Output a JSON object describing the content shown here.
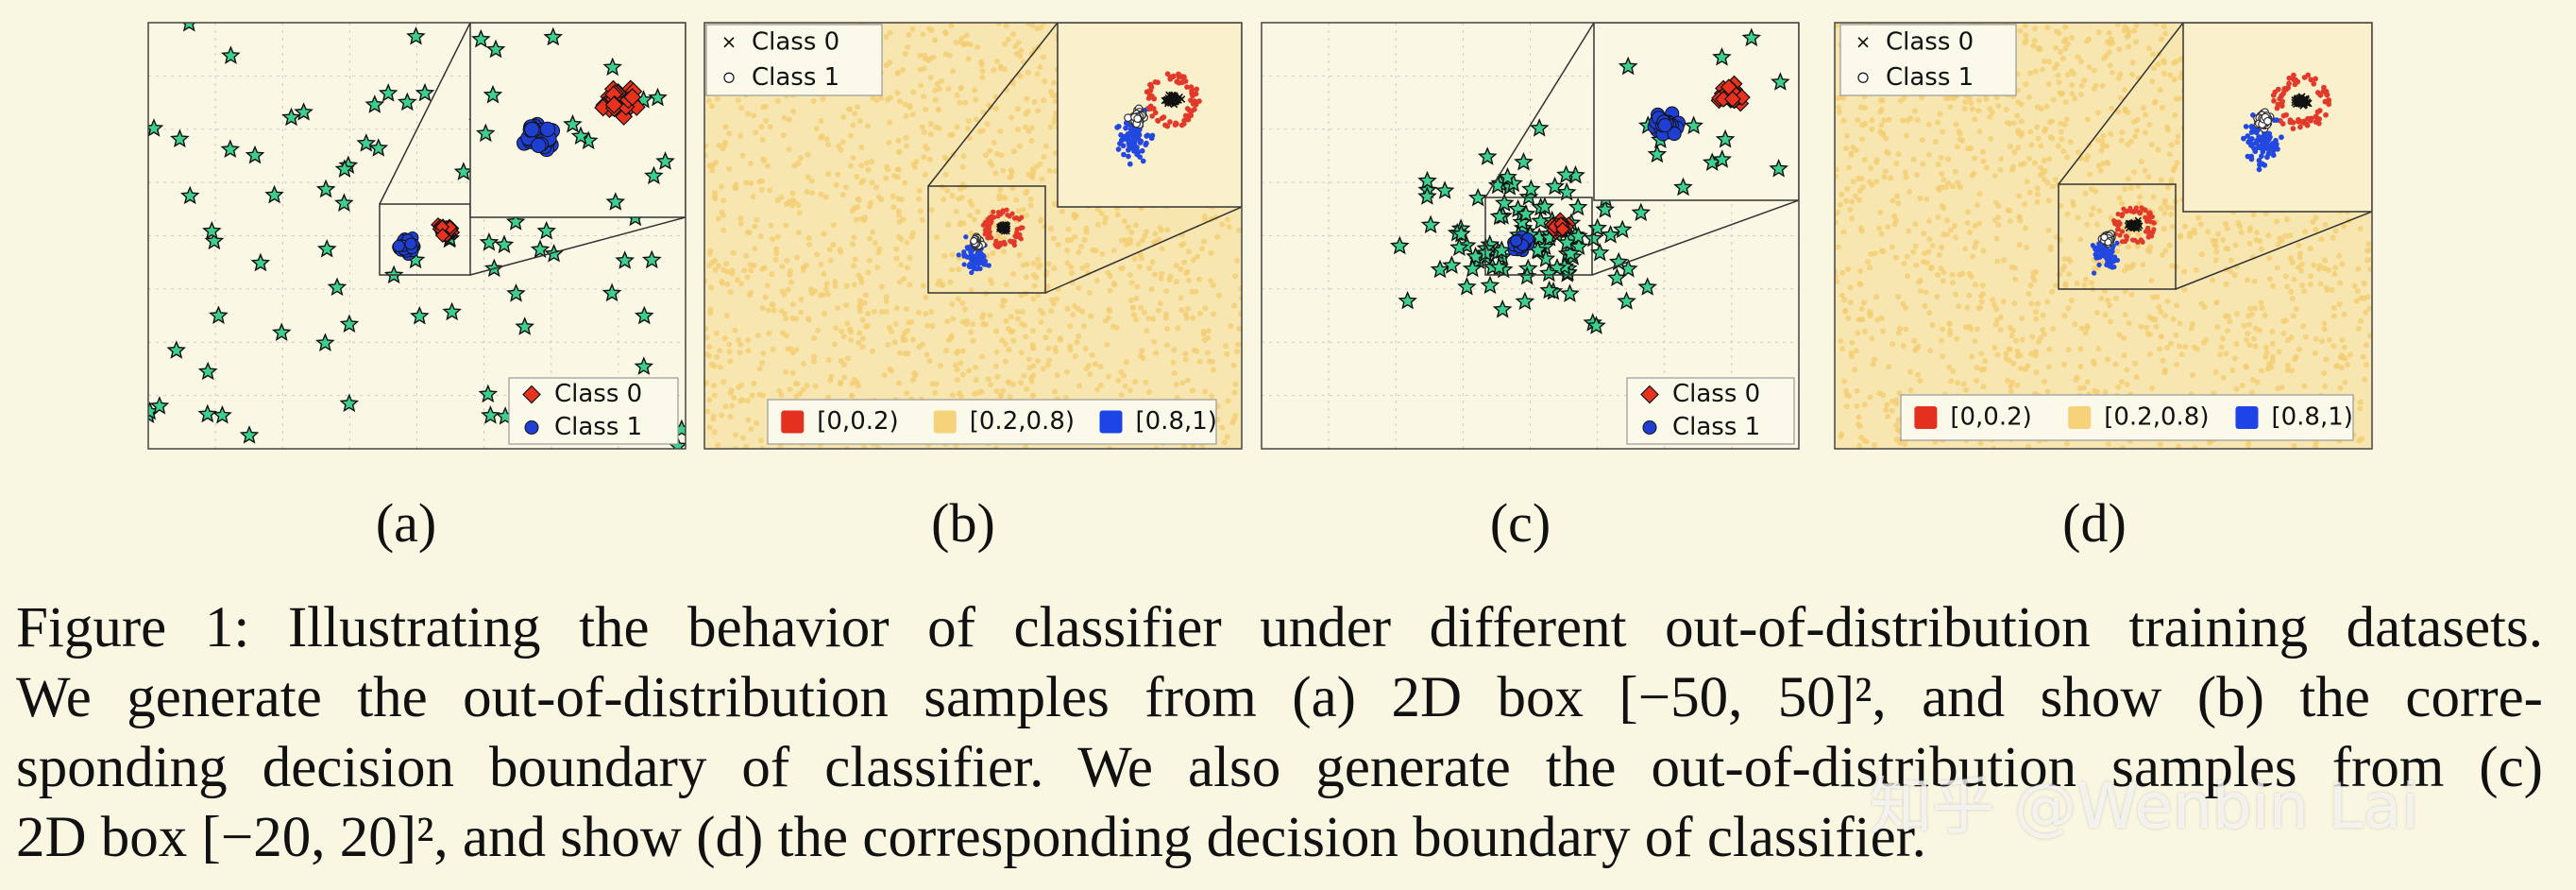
{
  "panels": [
    {
      "kind": "ood",
      "label": "(a)",
      "legend": [
        "Class 0",
        "Class 1"
      ]
    },
    {
      "kind": "boundary",
      "label": "(b)",
      "legend": [
        "Class 0",
        "Class 1"
      ],
      "color_legend": [
        "[0,0.2)",
        "[0.2,0.8)",
        "[0.8,1)"
      ]
    },
    {
      "kind": "ood",
      "label": "(c)",
      "legend": [
        "Class 0",
        "Class 1"
      ]
    },
    {
      "kind": "boundary",
      "label": "(d)",
      "legend": [
        "Class 0",
        "Class 1"
      ],
      "color_legend": [
        "[0,0.2)",
        "[0.2,0.8)",
        "[0.8,1)"
      ]
    }
  ],
  "caption": {
    "lines": [
      "Figure 1: Illustrating the behavior of classifier under different out-of-distribution training datasets.",
      "We generate the out-of-distribution samples from (a) 2D box [−50, 50]², and show (b) the corre-",
      "sponding decision boundary of classifier. We also generate the out-of-distribution samples from (c)",
      "2D box [−20, 20]², and show (d) the corresponding decision boundary of classifier."
    ]
  },
  "watermark": "知乎 @Wenbin Lai"
}
